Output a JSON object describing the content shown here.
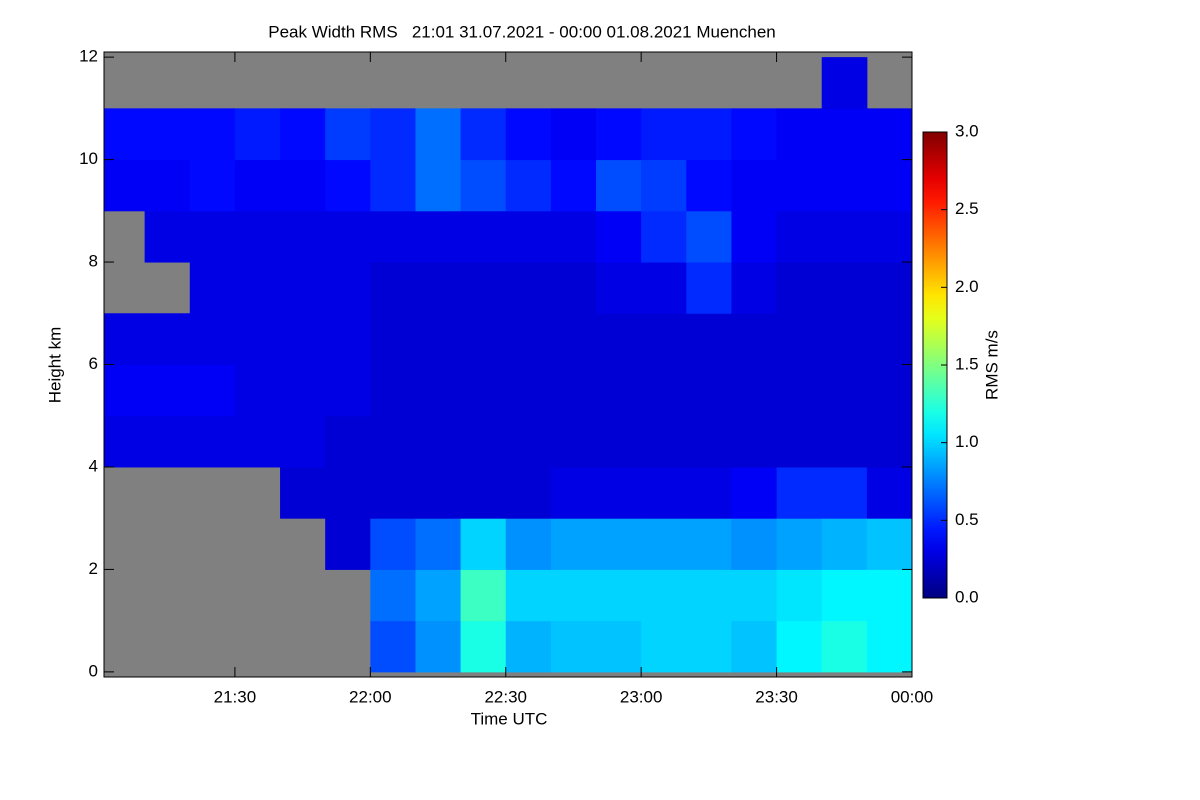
{
  "chart_data": {
    "type": "heatmap",
    "title": "Peak Width RMS   21:01 31.07.2021 - 00:00 01.08.2021 Muenchen",
    "x_label": "Time UTC",
    "y_label": "Height km",
    "colorbar_label": "RMS m/s",
    "colormap": "jet",
    "missing_color": "#808080",
    "xlim": [
      1261,
      1440
    ],
    "xticks": [
      {
        "value": 1290,
        "label": "21:30"
      },
      {
        "value": 1320,
        "label": "22:00"
      },
      {
        "value": 1350,
        "label": "22:30"
      },
      {
        "value": 1380,
        "label": "23:00"
      },
      {
        "value": 1410,
        "label": "23:30"
      },
      {
        "value": 1440,
        "label": "00:00"
      }
    ],
    "ylim": [
      -0.1,
      12.1
    ],
    "yticks": [
      0,
      2,
      4,
      6,
      8,
      10,
      12
    ],
    "clim": [
      0,
      3
    ],
    "cticks": [
      {
        "value": 0,
        "label": "0.0"
      },
      {
        "value": 0.5,
        "label": "0.5"
      },
      {
        "value": 1,
        "label": "1.0"
      },
      {
        "value": 1.5,
        "label": "1.5"
      },
      {
        "value": 2,
        "label": "2.0"
      },
      {
        "value": 2.5,
        "label": "2.5"
      },
      {
        "value": 3,
        "label": "3.0"
      }
    ],
    "x": [
      1265,
      1275,
      1285,
      1295,
      1305,
      1315,
      1325,
      1335,
      1345,
      1355,
      1365,
      1375,
      1385,
      1395,
      1405,
      1415,
      1425,
      1435
    ],
    "y": [
      0.5,
      1.5,
      2.5,
      3.5,
      4.5,
      5.5,
      6.5,
      7.5,
      8.5,
      9.5,
      10.5,
      11.5
    ],
    "z": [
      [
        null,
        null,
        null,
        null,
        0.3,
        0.35,
        0.3,
        null,
        null,
        0.35,
        0.4,
        null
      ],
      [
        null,
        null,
        null,
        null,
        0.3,
        0.35,
        0.3,
        null,
        0.3,
        0.35,
        0.4,
        null
      ],
      [
        null,
        null,
        null,
        null,
        0.3,
        0.35,
        0.3,
        0.3,
        0.3,
        0.4,
        0.4,
        null
      ],
      [
        null,
        null,
        null,
        null,
        0.3,
        0.3,
        0.3,
        0.3,
        0.3,
        0.35,
        0.45,
        null
      ],
      [
        null,
        null,
        null,
        0.25,
        0.3,
        0.3,
        0.3,
        0.3,
        0.3,
        0.35,
        0.4,
        null
      ],
      [
        null,
        null,
        0.25,
        0.25,
        0.25,
        0.3,
        0.3,
        0.3,
        0.3,
        0.4,
        0.55,
        null
      ],
      [
        0.6,
        0.7,
        0.6,
        0.25,
        0.25,
        0.25,
        0.25,
        0.25,
        0.3,
        0.5,
        0.5,
        null
      ],
      [
        0.8,
        0.85,
        0.7,
        0.25,
        0.25,
        0.25,
        0.25,
        0.25,
        0.3,
        0.7,
        0.7,
        null
      ],
      [
        1.2,
        1.3,
        1.0,
        0.25,
        0.25,
        0.25,
        0.25,
        0.25,
        0.3,
        0.6,
        0.5,
        null
      ],
      [
        0.9,
        1.0,
        0.8,
        0.25,
        0.25,
        0.25,
        0.25,
        0.25,
        0.3,
        0.5,
        0.4,
        null
      ],
      [
        0.95,
        1.0,
        0.85,
        0.3,
        0.25,
        0.25,
        0.25,
        0.25,
        0.3,
        0.4,
        0.35,
        null
      ],
      [
        0.95,
        1.0,
        0.85,
        0.3,
        0.25,
        0.25,
        0.25,
        0.3,
        0.35,
        0.6,
        0.4,
        null
      ],
      [
        1.0,
        1.0,
        0.85,
        0.3,
        0.25,
        0.25,
        0.25,
        0.3,
        0.5,
        0.55,
        0.45,
        null
      ],
      [
        1.0,
        1.0,
        0.85,
        0.3,
        0.25,
        0.25,
        0.25,
        0.5,
        0.6,
        0.4,
        0.45,
        null
      ],
      [
        0.95,
        1.0,
        0.8,
        0.35,
        0.25,
        0.25,
        0.25,
        0.3,
        0.35,
        0.35,
        0.4,
        null
      ],
      [
        1.1,
        1.05,
        0.85,
        0.5,
        0.25,
        0.25,
        0.25,
        0.25,
        0.3,
        0.35,
        0.35,
        null
      ],
      [
        1.2,
        1.1,
        0.9,
        0.5,
        0.25,
        0.25,
        0.25,
        0.25,
        0.3,
        0.35,
        0.35,
        0.3
      ],
      [
        1.1,
        1.1,
        0.95,
        0.3,
        0.25,
        0.25,
        0.25,
        0.25,
        0.3,
        0.35,
        0.35,
        null
      ]
    ]
  }
}
